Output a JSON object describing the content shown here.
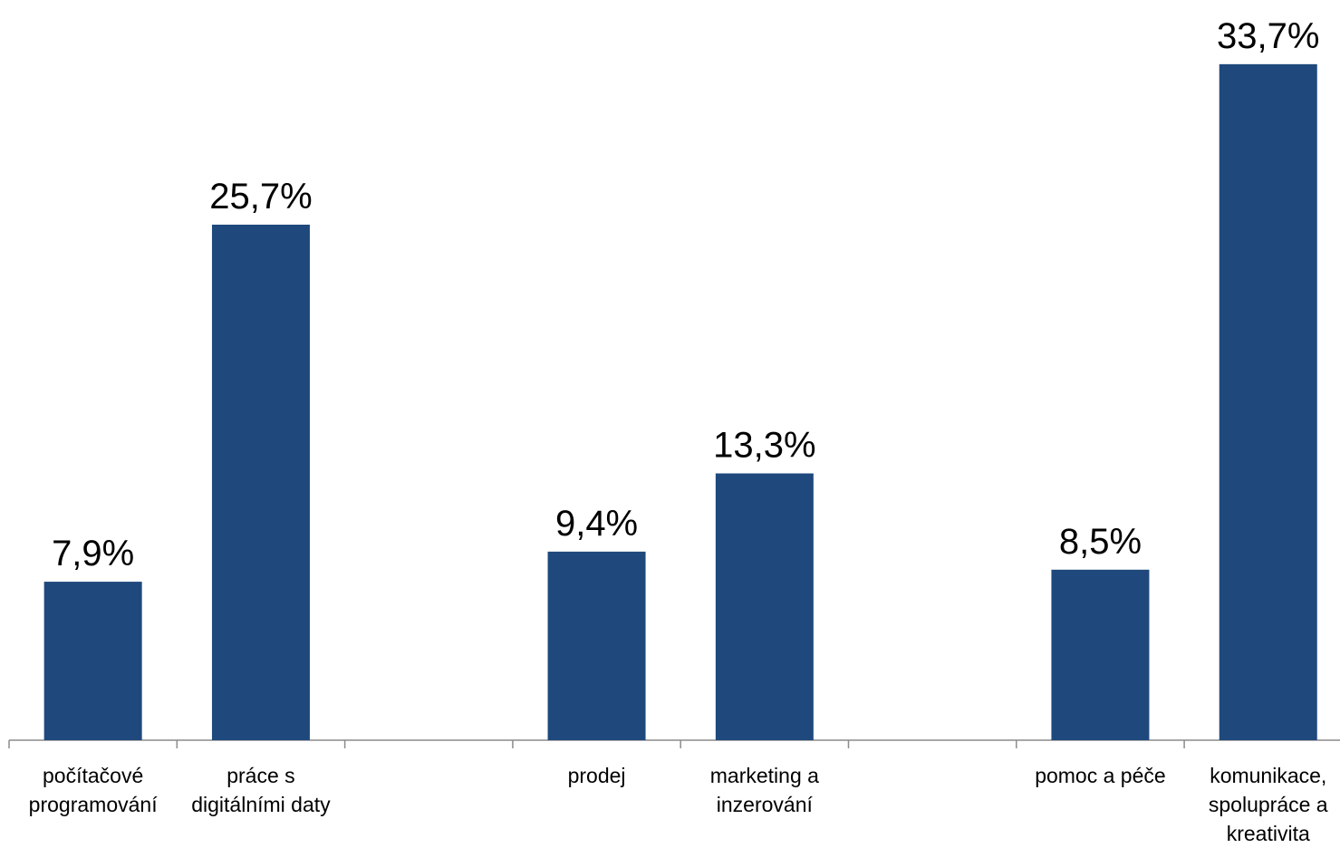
{
  "chart_data": {
    "type": "bar",
    "categories": [
      "počítačové programování",
      "práce s digitálními daty",
      null,
      "prodej",
      "marketing a inzerování",
      null,
      "pomoc a péče",
      "komunikace, spolupráce a kreativita"
    ],
    "values": [
      7.9,
      25.7,
      null,
      9.4,
      13.3,
      null,
      8.5,
      33.7
    ],
    "value_labels": [
      "7,9%",
      "25,7%",
      null,
      "9,4%",
      "13,3%",
      null,
      "8,5%",
      "33,7%"
    ],
    "color": "#1f497d",
    "ylim": [
      0,
      36.9
    ]
  }
}
